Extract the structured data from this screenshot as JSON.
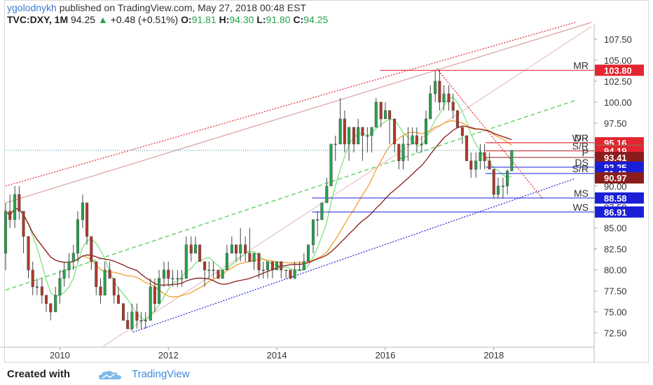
{
  "header": {
    "author": "ygolodnykh",
    "published": "published on TradingView.com, May 27, 2018 00:48 EST",
    "symbol": "TVC:DXY, 1M",
    "last": "94.25",
    "change_arrow": "▲",
    "change": "+0.48 (+0.51%)",
    "o_label": "O:",
    "o": "91.81",
    "h_label": "H:",
    "h": "94.30",
    "l_label": "L:",
    "l": "91.80",
    "c_label": "C:",
    "c": "94.25"
  },
  "footer": {
    "created": "Created with",
    "brand": "TradingView"
  },
  "colors": {
    "up": "#27a24b",
    "down": "#b0392b",
    "red_level": "#e3252f",
    "blue_level": "#1a1fd6",
    "ma_green": "#7fe27f",
    "ma_orange": "#f0a030",
    "ma_dark": "#8b1c1c"
  },
  "chart_data": {
    "type": "candlestick",
    "interval": "1M",
    "x_ticks": [
      "2010",
      "2012",
      "2014",
      "2016",
      "2018"
    ],
    "y_ticks": [
      "107.50",
      "105.00",
      "102.50",
      "100.00",
      "97.50",
      "95.00",
      "92.50",
      "90.00",
      "87.50",
      "85.00",
      "82.50",
      "80.00",
      "77.50",
      "75.00",
      "72.50"
    ],
    "ylim": [
      70.8,
      109.0
    ],
    "xlim": [
      2009.0,
      2019.85
    ],
    "candles_approx": [
      [
        2009.0,
        82,
        88,
        80,
        87
      ],
      [
        2009.08,
        87,
        89,
        85,
        86
      ],
      [
        2009.17,
        86,
        90,
        85,
        89
      ],
      [
        2009.25,
        89,
        90,
        86,
        87
      ],
      [
        2009.33,
        87,
        87,
        82,
        84
      ],
      [
        2009.42,
        84,
        84,
        79,
        80
      ],
      [
        2009.5,
        80,
        81,
        77,
        78
      ],
      [
        2009.58,
        78,
        79,
        77,
        78
      ],
      [
        2009.67,
        78,
        79,
        76,
        77
      ],
      [
        2009.75,
        77,
        77,
        75,
        76
      ],
      [
        2009.83,
        76,
        76,
        74,
        75
      ],
      [
        2009.92,
        75,
        78,
        75,
        77
      ],
      [
        2010.0,
        77,
        80,
        76,
        79
      ],
      [
        2010.08,
        79,
        81,
        78,
        80
      ],
      [
        2010.17,
        80,
        82,
        79,
        81
      ],
      [
        2010.25,
        81,
        83,
        80,
        82
      ],
      [
        2010.33,
        82,
        87,
        81,
        86
      ],
      [
        2010.42,
        86,
        89,
        85,
        88
      ],
      [
        2010.5,
        88,
        88,
        83,
        84
      ],
      [
        2010.58,
        84,
        84,
        80,
        81
      ],
      [
        2010.67,
        81,
        81,
        77,
        78
      ],
      [
        2010.75,
        78,
        79,
        76,
        77
      ],
      [
        2010.83,
        77,
        81,
        77,
        80
      ],
      [
        2010.92,
        80,
        81,
        79,
        79
      ],
      [
        2011.0,
        79,
        79,
        76,
        77
      ],
      [
        2011.08,
        77,
        78,
        76,
        76
      ],
      [
        2011.17,
        76,
        76,
        74,
        74
      ],
      [
        2011.25,
        74,
        75,
        73,
        73
      ],
      [
        2011.33,
        73,
        76,
        72.7,
        75
      ],
      [
        2011.42,
        75,
        76,
        73,
        74
      ],
      [
        2011.5,
        74,
        75,
        73,
        74
      ],
      [
        2011.58,
        74,
        75,
        73,
        74
      ],
      [
        2011.67,
        74,
        79,
        74,
        78
      ],
      [
        2011.75,
        78,
        79,
        75,
        76
      ],
      [
        2011.83,
        76,
        80,
        76,
        79
      ],
      [
        2011.92,
        79,
        81,
        78,
        80
      ],
      [
        2012.0,
        80,
        81,
        78,
        79
      ],
      [
        2012.08,
        79,
        80,
        78,
        79
      ],
      [
        2012.17,
        79,
        80,
        78,
        79
      ],
      [
        2012.25,
        79,
        80,
        78,
        79
      ],
      [
        2012.33,
        79,
        84,
        79,
        83
      ],
      [
        2012.42,
        83,
        84,
        81,
        82
      ],
      [
        2012.5,
        82,
        84,
        82,
        83
      ],
      [
        2012.58,
        83,
        83,
        81,
        81
      ],
      [
        2012.67,
        81,
        81,
        78,
        80
      ],
      [
        2012.75,
        80,
        81,
        79,
        80
      ],
      [
        2012.83,
        80,
        81,
        79,
        80
      ],
      [
        2012.92,
        80,
        80,
        79,
        79
      ],
      [
        2013.0,
        79,
        80,
        79,
        80
      ],
      [
        2013.08,
        80,
        83,
        80,
        82
      ],
      [
        2013.17,
        82,
        84,
        82,
        83
      ],
      [
        2013.25,
        83,
        83,
        81,
        82
      ],
      [
        2013.33,
        82,
        85,
        81,
        83
      ],
      [
        2013.42,
        83,
        84,
        81,
        82
      ],
      [
        2013.5,
        82,
        85,
        81,
        81
      ],
      [
        2013.58,
        81,
        82,
        80,
        82
      ],
      [
        2013.67,
        82,
        82,
        79,
        80
      ],
      [
        2013.75,
        80,
        81,
        79,
        80
      ],
      [
        2013.83,
        80,
        81,
        79,
        81
      ],
      [
        2013.92,
        81,
        81,
        79,
        80
      ],
      [
        2014.0,
        80,
        81,
        80,
        81
      ],
      [
        2014.08,
        81,
        81,
        79,
        80
      ],
      [
        2014.17,
        80,
        80,
        79,
        80
      ],
      [
        2014.25,
        80,
        80,
        78.9,
        79
      ],
      [
        2014.33,
        79,
        81,
        79,
        80
      ],
      [
        2014.42,
        80,
        81,
        80,
        80
      ],
      [
        2014.5,
        80,
        82,
        80,
        81
      ],
      [
        2014.58,
        81,
        83,
        81,
        83
      ],
      [
        2014.67,
        83,
        86,
        82,
        86
      ],
      [
        2014.75,
        86,
        87,
        84,
        86
      ],
      [
        2014.83,
        86,
        88,
        86,
        88
      ],
      [
        2014.92,
        88,
        91,
        88,
        90
      ],
      [
        2015.0,
        90,
        95,
        90,
        95
      ],
      [
        2015.08,
        95,
        96,
        93,
        95
      ],
      [
        2015.17,
        95,
        100.5,
        95,
        98
      ],
      [
        2015.25,
        98,
        99,
        94,
        95
      ],
      [
        2015.33,
        95,
        97,
        93,
        97
      ],
      [
        2015.42,
        97,
        97,
        94,
        95
      ],
      [
        2015.5,
        95,
        98,
        95,
        97
      ],
      [
        2015.58,
        97,
        97,
        93,
        96
      ],
      [
        2015.67,
        96,
        97,
        94,
        96
      ],
      [
        2015.75,
        96,
        97,
        94,
        97
      ],
      [
        2015.83,
        97,
        100.5,
        97,
        100
      ],
      [
        2015.92,
        100,
        100,
        97,
        98
      ],
      [
        2016.0,
        98,
        100,
        98,
        99
      ],
      [
        2016.08,
        99,
        99,
        95,
        98
      ],
      [
        2016.17,
        98,
        98,
        94,
        95
      ],
      [
        2016.25,
        95,
        95,
        92,
        93
      ],
      [
        2016.33,
        93,
        96,
        92,
        95
      ],
      [
        2016.42,
        95,
        97,
        93,
        95
      ],
      [
        2016.5,
        95,
        97,
        95,
        96
      ],
      [
        2016.58,
        96,
        97,
        94,
        95
      ],
      [
        2016.67,
        95,
        96,
        94,
        95
      ],
      [
        2016.75,
        95,
        99,
        95,
        98
      ],
      [
        2016.83,
        98,
        102,
        98,
        101
      ],
      [
        2016.92,
        101,
        103.8,
        100,
        102.5
      ],
      [
        2017.0,
        102.5,
        103.8,
        99,
        100
      ],
      [
        2017.08,
        100,
        102,
        99,
        101
      ],
      [
        2017.17,
        101,
        102,
        99,
        100
      ],
      [
        2017.25,
        100,
        101,
        98,
        99
      ],
      [
        2017.33,
        99,
        99,
        97,
        97
      ],
      [
        2017.42,
        97,
        97,
        95,
        96
      ],
      [
        2017.5,
        96,
        96,
        93,
        93
      ],
      [
        2017.58,
        93,
        94,
        91,
        92
      ],
      [
        2017.67,
        92,
        94,
        91,
        93
      ],
      [
        2017.75,
        93,
        95,
        92,
        94
      ],
      [
        2017.83,
        94,
        95,
        92,
        93
      ],
      [
        2017.92,
        93,
        94,
        92,
        92
      ],
      [
        2018.0,
        92,
        92,
        88.5,
        89
      ],
      [
        2018.08,
        89,
        91,
        88.6,
        90
      ],
      [
        2018.17,
        90,
        91,
        88.5,
        90
      ],
      [
        2018.25,
        90,
        92,
        89,
        91.8
      ],
      [
        2018.33,
        91.8,
        94.3,
        91.8,
        94.25
      ]
    ],
    "moving_averages": [
      {
        "color": "green"
      },
      {
        "color": "orange"
      },
      {
        "color": "dark-red"
      }
    ],
    "levels": [
      {
        "label": "MR",
        "price": 103.8,
        "tag": "103.80",
        "color": "red"
      },
      {
        "label": "WR",
        "price": 95.16,
        "tag": "95.16",
        "color": "red"
      },
      {
        "label": "DR",
        "price": 95.16,
        "tag": "",
        "color": "red"
      },
      {
        "label": "S/R",
        "price": 94.19,
        "tag": "94.19",
        "color": "red"
      },
      {
        "label": "DS",
        "price": 92.25,
        "tag": "92.25",
        "color": "blue"
      },
      {
        "label": "S/R",
        "price": 91.49,
        "tag": "91.49",
        "color": "blue"
      },
      {
        "label": "P",
        "price": 93.41,
        "tag": "93.41",
        "color": "dark-red"
      },
      {
        "label": "MS",
        "price": 88.58,
        "tag": "88.58",
        "color": "blue"
      },
      {
        "label": "WS",
        "price": 86.91,
        "tag": "86.91",
        "color": "blue"
      }
    ],
    "price_tags": [
      {
        "text": "103.80",
        "price": 103.8,
        "bg": "#e3252f"
      },
      {
        "text": "95.16",
        "price": 95.16,
        "bg": "#e3252f"
      },
      {
        "text": "94.25",
        "price": 94.25,
        "bg": "#5fa87a"
      },
      {
        "text": "94.19",
        "price": 94.19,
        "bg": "#e3252f"
      },
      {
        "text": "93.41",
        "price": 93.41,
        "bg": "#8b1c1c"
      },
      {
        "text": "92.25",
        "price": 92.25,
        "bg": "#1a1fd6"
      },
      {
        "text": "91.49",
        "price": 91.49,
        "bg": "#1a1fd6"
      },
      {
        "text": "90.97",
        "price": 90.97,
        "bg": "#8b1c1c"
      },
      {
        "text": "88.58",
        "price": 88.58,
        "bg": "#1a1fd6"
      },
      {
        "text": "86.91",
        "price": 86.91,
        "bg": "#1a1fd6"
      }
    ],
    "trendlines": [
      {
        "name": "upper-channel",
        "from": [
          2009.0,
          90.0
        ],
        "to": [
          2019.5,
          109.5
        ],
        "color": "red",
        "style": "dotted"
      },
      {
        "name": "mid-channel",
        "from": [
          2009.0,
          77.6
        ],
        "to": [
          2019.5,
          100.2
        ],
        "color": "green",
        "style": "dashed"
      },
      {
        "name": "lower-channel",
        "from": [
          2011.35,
          72.6
        ],
        "to": [
          2019.5,
          90.9
        ],
        "color": "blue",
        "style": "dotted"
      },
      {
        "name": "top-downtrend",
        "from": [
          2016.95,
          104.0
        ],
        "to": [
          2018.9,
          88.5
        ],
        "color": "red",
        "style": "dotted"
      },
      {
        "name": "long-trend",
        "from": [
          2009.0,
          88.0
        ],
        "to": [
          2019.8,
          109.5
        ],
        "color": "#d9a0a0",
        "style": "solid"
      },
      {
        "name": "long-trend-2",
        "from": [
          2010.8,
          70.9
        ],
        "to": [
          2019.8,
          109.0
        ],
        "color": "#e8c0c0",
        "style": "solid"
      }
    ]
  }
}
